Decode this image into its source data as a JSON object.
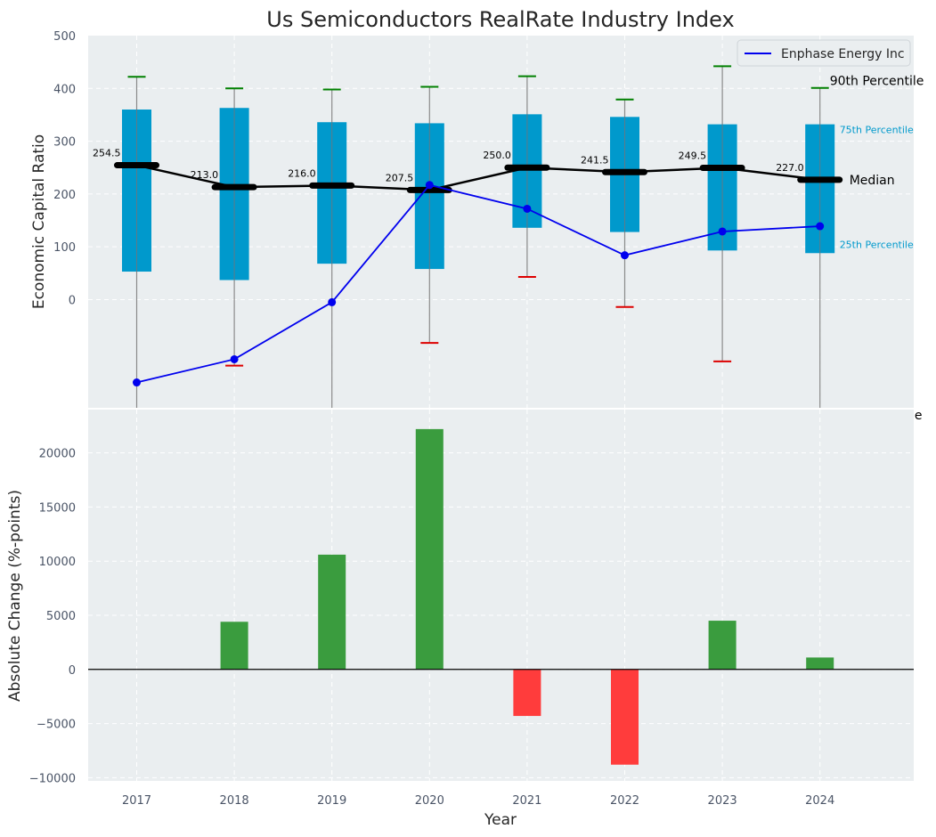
{
  "chart_data": [
    {
      "type": "box",
      "title": "Us Semiconductors RealRate Industry Index",
      "ylabel": "Economic Capital Ratio",
      "xlabel": "",
      "ylim": [
        -205,
        500
      ],
      "yticks": [
        0,
        100,
        200,
        300,
        400,
        500
      ],
      "categories": [
        "2017",
        "2018",
        "2019",
        "2020",
        "2021",
        "2022",
        "2023",
        "2024"
      ],
      "p90": [
        422,
        400,
        398,
        403,
        423,
        379,
        442,
        401
      ],
      "p75": [
        360,
        363,
        336,
        334,
        351,
        346,
        332,
        332
      ],
      "median": [
        254.5,
        213.0,
        216.0,
        207.5,
        250.0,
        241.5,
        249.5,
        227.0
      ],
      "median_labels": [
        "254.5",
        "213.0",
        "216.0",
        "207.5",
        "250.0",
        "241.5",
        "249.5",
        "227.0"
      ],
      "p25": [
        53,
        37,
        68,
        58,
        136,
        128,
        93,
        88
      ],
      "p10": [
        null,
        -125,
        null,
        -82,
        43,
        -14,
        -117,
        null
      ],
      "series": [
        {
          "name": "Enphase Energy Inc",
          "values": [
            -157,
            -113,
            -5,
            217,
            172,
            84,
            129,
            139
          ],
          "color": "#0000ee"
        }
      ],
      "legend": {
        "position": "top-right",
        "label": "Enphase Energy Inc"
      },
      "annotations": {
        "p90": "90th Percentile",
        "p75": "75th Percentile",
        "median": "Median",
        "p25": "25th Percentile",
        "p10_truncated": "le"
      },
      "colors": {
        "box": "#0099cc",
        "median": "#000000",
        "p90_cap": "#008000",
        "p10_cap": "#dd0000",
        "background": "#eaeef0"
      },
      "grid": true
    },
    {
      "type": "bar",
      "xlabel": "Year",
      "ylabel": "Absolute Change (%-points)",
      "ylim": [
        -10300,
        24000
      ],
      "yticks": [
        -10000,
        -5000,
        0,
        5000,
        10000,
        15000,
        20000
      ],
      "ytick_labels": [
        "−10000",
        "−5000",
        "0",
        "5000",
        "10000",
        "15000",
        "20000"
      ],
      "categories": [
        "2017",
        "2018",
        "2019",
        "2020",
        "2021",
        "2022",
        "2023",
        "2024"
      ],
      "values": [
        0,
        4400,
        10600,
        22200,
        -4300,
        -8800,
        4500,
        1100
      ],
      "colors": {
        "positive": "#3a9c3e",
        "negative": "#ff3c3c",
        "background": "#eaeef0"
      },
      "grid": true
    }
  ]
}
